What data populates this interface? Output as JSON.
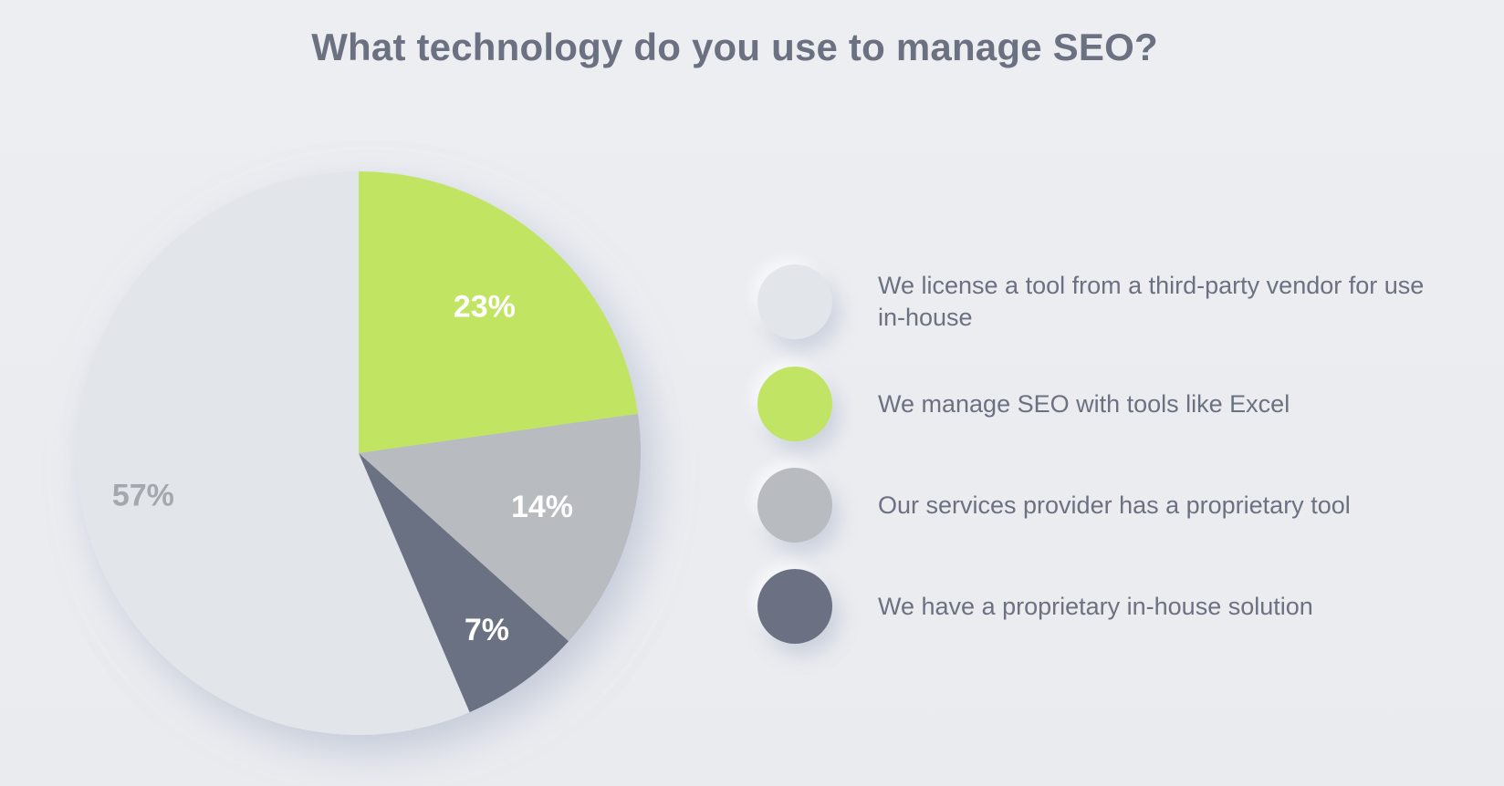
{
  "chart_data": {
    "type": "pie",
    "title": "What technology do you use to manage SEO?",
    "slices": [
      {
        "label": "We license a tool from a third-party vendor for use in-house",
        "value": 57,
        "display": "57%",
        "color": "#e2e5ea",
        "label_color": "#a3a7ae"
      },
      {
        "label": "We manage SEO with tools like Excel",
        "value": 23,
        "display": "23%",
        "color": "#c1e464",
        "label_color": "#ffffff"
      },
      {
        "label": "Our services provider has a proprietary tool",
        "value": 14,
        "display": "14%",
        "color": "#b8bbbf",
        "label_color": "#ffffff"
      },
      {
        "label": "We have a proprietary in-house solution",
        "value": 7,
        "display": "7%",
        "color": "#6b7183",
        "label_color": "#ffffff"
      }
    ],
    "legend_position": "right"
  }
}
